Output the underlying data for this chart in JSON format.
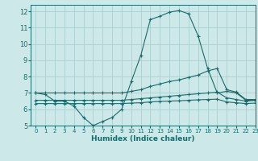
{
  "bg_color": "#cce8e8",
  "grid_color": "#aacfcf",
  "line_color": "#1a6b6b",
  "xlabel": "Humidex (Indice chaleur)",
  "xlim": [
    -0.5,
    23
  ],
  "ylim": [
    5,
    12.4
  ],
  "xticks": [
    0,
    1,
    2,
    3,
    4,
    5,
    6,
    7,
    8,
    9,
    10,
    11,
    12,
    13,
    14,
    15,
    16,
    17,
    18,
    19,
    20,
    21,
    22,
    23
  ],
  "yticks": [
    5,
    6,
    7,
    8,
    9,
    10,
    11,
    12
  ],
  "line1_x": [
    0,
    1,
    2,
    3,
    4,
    5,
    6,
    7,
    8,
    9,
    10,
    11,
    12,
    13,
    14,
    15,
    16,
    17,
    18,
    19,
    20,
    21,
    22,
    23
  ],
  "line1_y": [
    7.0,
    6.9,
    6.5,
    6.5,
    6.2,
    5.5,
    5.0,
    5.25,
    5.5,
    6.0,
    7.7,
    9.3,
    11.5,
    11.7,
    11.95,
    12.05,
    11.85,
    10.5,
    8.5,
    7.0,
    7.1,
    7.0,
    6.55,
    6.55
  ],
  "line2_x": [
    0,
    1,
    2,
    3,
    4,
    5,
    6,
    7,
    8,
    9,
    10,
    11,
    12,
    13,
    14,
    15,
    16,
    17,
    18,
    19,
    20,
    21,
    22,
    23
  ],
  "line2_y": [
    7.0,
    7.0,
    7.0,
    7.0,
    7.0,
    7.0,
    7.0,
    7.0,
    7.0,
    7.0,
    7.1,
    7.2,
    7.4,
    7.55,
    7.7,
    7.8,
    7.95,
    8.1,
    8.35,
    8.5,
    7.2,
    7.05,
    6.6,
    6.6
  ],
  "line3_x": [
    0,
    1,
    2,
    3,
    4,
    5,
    6,
    7,
    8,
    9,
    10,
    11,
    12,
    13,
    14,
    15,
    16,
    17,
    18,
    19,
    20,
    21,
    22,
    23
  ],
  "line3_y": [
    6.55,
    6.55,
    6.55,
    6.55,
    6.55,
    6.55,
    6.55,
    6.55,
    6.55,
    6.55,
    6.6,
    6.65,
    6.7,
    6.75,
    6.8,
    6.85,
    6.9,
    6.95,
    7.0,
    7.05,
    6.7,
    6.6,
    6.5,
    6.55
  ],
  "line4_x": [
    0,
    1,
    2,
    3,
    4,
    5,
    6,
    7,
    8,
    9,
    10,
    11,
    12,
    13,
    14,
    15,
    16,
    17,
    18,
    19,
    20,
    21,
    22,
    23
  ],
  "line4_y": [
    6.35,
    6.35,
    6.35,
    6.35,
    6.35,
    6.35,
    6.35,
    6.35,
    6.35,
    6.35,
    6.38,
    6.4,
    6.45,
    6.48,
    6.5,
    6.52,
    6.55,
    6.58,
    6.6,
    6.62,
    6.45,
    6.4,
    6.35,
    6.38
  ]
}
